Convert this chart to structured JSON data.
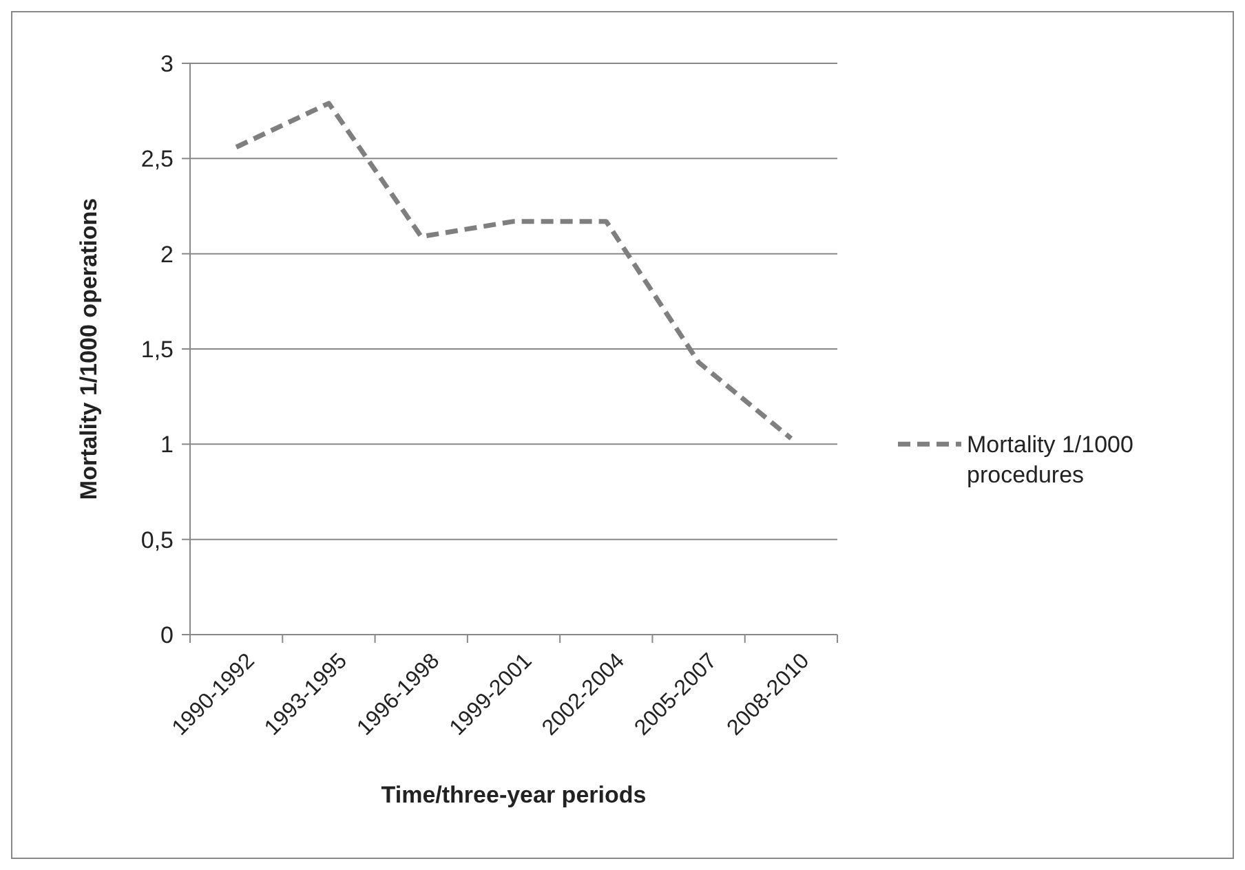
{
  "chart_data": {
    "type": "line",
    "xlabel": "Time/three-year periods",
    "ylabel": "Mortality 1/1000 operations",
    "categories": [
      "1990-1992",
      "1993-1995",
      "1996-1998",
      "1999-2001",
      "2002-2004",
      "2005-2007",
      "2008-2010"
    ],
    "series": [
      {
        "name": "Mortality 1/1000 procedures",
        "color": "#7f7f7f",
        "values": [
          2.56,
          2.79,
          2.09,
          2.17,
          2.17,
          1.43,
          1.03
        ]
      }
    ],
    "ylim": [
      0,
      3
    ],
    "yticks": [
      0,
      {
        "value": 0.5,
        "label": "0,5"
      },
      1,
      {
        "value": 1.5,
        "label": "1,5"
      },
      2,
      {
        "value": 2.5,
        "label": "2,5"
      },
      3
    ],
    "grid": "y",
    "legend": "right",
    "line_style": "dashed",
    "marker": "none"
  }
}
